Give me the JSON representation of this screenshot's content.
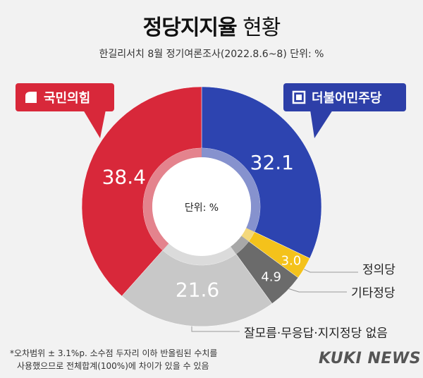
{
  "header": {
    "title_bold": "정당지지율",
    "title_light": "현황",
    "subtitle": "한길리서치 8월 정기여론조사(2022.8.6~8) 단위: %"
  },
  "parties": {
    "ppp": {
      "label": "국민의힘",
      "color": "#d8283a",
      "logo": "ppp-logo-icon"
    },
    "dp": {
      "label": "더불어민주당",
      "color": "#2d3fa8",
      "logo": "dp-logo-icon"
    }
  },
  "chart_data": {
    "type": "pie",
    "variant": "donut",
    "center_label": "단위: %",
    "slices": [
      {
        "name": "더불어민주당",
        "value": 32.1,
        "color": "#2d44b0"
      },
      {
        "name": "정의당",
        "value": 3.0,
        "color": "#f4c21b"
      },
      {
        "name": "기타정당",
        "value": 4.9,
        "color": "#6b6b6b"
      },
      {
        "name": "잘모름·무응답·지지정당 없음",
        "value": 21.6,
        "color": "#c8c8c8"
      },
      {
        "name": "국민의힘",
        "value": 38.4,
        "color": "#d8283a"
      }
    ],
    "value_labels": [
      "32.1",
      "3.0",
      "4.9",
      "21.6",
      "38.4"
    ],
    "outer_labels": [
      "정의당",
      "기타정당",
      "잘모름·무응답·지지정당 없음"
    ]
  },
  "footer": {
    "note_line1": "*오차범위 ± 3.1%p. 소수점 두자리 이하 반올림된 수치를",
    "note_line2": "사용했으므로 전체합계(100%)에 차이가 있을 수 있음",
    "brand": "KUKI NEWS"
  }
}
